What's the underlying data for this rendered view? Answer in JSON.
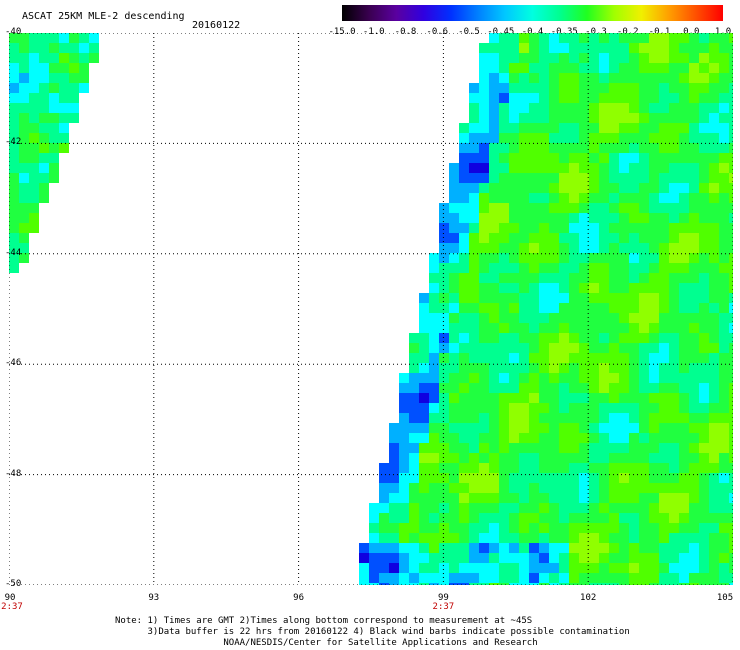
{
  "header": {
    "title": "ASCAT 25KM MLE-2 descending",
    "date": "20160122"
  },
  "colorbar": {
    "labels": [
      "-15.0",
      "-1.0",
      "-0.8",
      "-0.6",
      "-0.5",
      "-0.45",
      "-0.4",
      "-0.35",
      "-0.3",
      "-0.2",
      "-0.1",
      "0.0",
      "1.0"
    ],
    "colors": [
      "#000000",
      "#3a0050",
      "#5a00a0",
      "#3000e0",
      "#0030ff",
      "#0080ff",
      "#00c8ff",
      "#00ffe0",
      "#00ff90",
      "#20ff20",
      "#a0ff00",
      "#f0f000",
      "#ffa000",
      "#ff5000",
      "#ff0000"
    ]
  },
  "axes": {
    "lat_labels": [
      "-40",
      "-42",
      "-44",
      "-46",
      "-48",
      "-50"
    ],
    "lat_range": [
      -50,
      -40
    ],
    "lon_labels": [
      "90",
      "93",
      "96",
      "99",
      "102",
      "105"
    ],
    "lon_range": [
      90,
      105
    ],
    "time_labels": [
      {
        "lon": 90,
        "text": "2:37"
      },
      {
        "lon": 99,
        "text": "2:37"
      }
    ],
    "grid": true
  },
  "notes": [
    "Note: 1) Times are GMT 2)Times along bottom correspond to measurement at ~45S",
    "      3)Data buffer is 22 hrs from 20160122 4) Black wind barbs indicate possible contamination",
    "                    NOAA/NESDIS/Center for Satellite Applications and Research"
  ]
}
